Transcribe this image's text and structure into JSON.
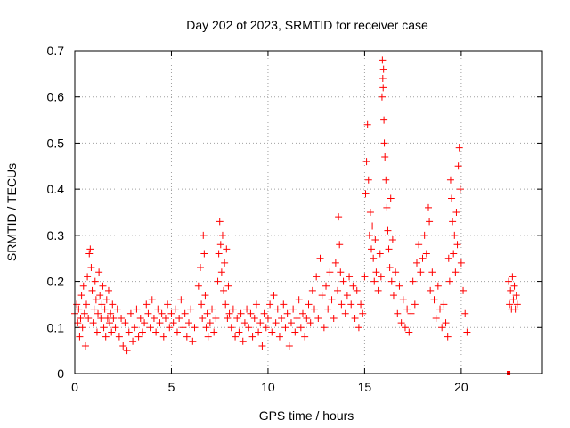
{
  "chart_data": {
    "type": "scatter",
    "title": "Day 202 of 2023, SRMTID for receiver case",
    "xlabel": "GPS time / hours",
    "ylabel": "SRMTID / TECUs",
    "xlim": [
      0,
      24.2
    ],
    "ylim": [
      0,
      0.7
    ],
    "xticks": [
      0,
      5,
      10,
      15,
      20
    ],
    "yticks": [
      0,
      0.1,
      0.2,
      0.3,
      0.4,
      0.5,
      0.6,
      0.7
    ],
    "ytick_labels": [
      "0",
      "0.1",
      "0.2",
      "0.3",
      "0.4",
      "0.5",
      "0.6",
      "0.7"
    ],
    "grid": true,
    "marker": "+",
    "color": "#ff0000",
    "series": [
      {
        "name": "SRMTID",
        "points": [
          [
            0.0,
            0.13
          ],
          [
            0.1,
            0.15
          ],
          [
            0.15,
            0.11
          ],
          [
            0.2,
            0.14
          ],
          [
            0.25,
            0.08
          ],
          [
            0.3,
            0.12
          ],
          [
            0.35,
            0.17
          ],
          [
            0.4,
            0.1
          ],
          [
            0.45,
            0.19
          ],
          [
            0.5,
            0.13
          ],
          [
            0.55,
            0.06
          ],
          [
            0.6,
            0.15
          ],
          [
            0.65,
            0.21
          ],
          [
            0.7,
            0.12
          ],
          [
            0.75,
            0.26
          ],
          [
            0.8,
            0.27
          ],
          [
            0.85,
            0.23
          ],
          [
            0.9,
            0.18
          ],
          [
            0.95,
            0.11
          ],
          [
            1.0,
            0.14
          ],
          [
            1.05,
            0.2
          ],
          [
            1.1,
            0.16
          ],
          [
            1.15,
            0.09
          ],
          [
            1.2,
            0.13
          ],
          [
            1.25,
            0.22
          ],
          [
            1.3,
            0.17
          ],
          [
            1.35,
            0.12
          ],
          [
            1.4,
            0.15
          ],
          [
            1.45,
            0.19
          ],
          [
            1.5,
            0.1
          ],
          [
            1.55,
            0.14
          ],
          [
            1.6,
            0.08
          ],
          [
            1.65,
            0.16
          ],
          [
            1.7,
            0.12
          ],
          [
            1.75,
            0.18
          ],
          [
            1.8,
            0.11
          ],
          [
            1.85,
            0.13
          ],
          [
            1.9,
            0.09
          ],
          [
            1.95,
            0.15
          ],
          [
            2.0,
            0.12
          ],
          [
            2.1,
            0.1
          ],
          [
            2.2,
            0.14
          ],
          [
            2.3,
            0.08
          ],
          [
            2.4,
            0.12
          ],
          [
            2.5,
            0.06
          ],
          [
            2.6,
            0.11
          ],
          [
            2.7,
            0.05
          ],
          [
            2.8,
            0.09
          ],
          [
            2.9,
            0.13
          ],
          [
            3.0,
            0.07
          ],
          [
            3.1,
            0.1
          ],
          [
            3.2,
            0.14
          ],
          [
            3.3,
            0.08
          ],
          [
            3.4,
            0.12
          ],
          [
            3.5,
            0.09
          ],
          [
            3.6,
            0.11
          ],
          [
            3.7,
            0.15
          ],
          [
            3.8,
            0.13
          ],
          [
            3.9,
            0.1
          ],
          [
            4.0,
            0.16
          ],
          [
            4.1,
            0.12
          ],
          [
            4.2,
            0.09
          ],
          [
            4.3,
            0.14
          ],
          [
            4.4,
            0.11
          ],
          [
            4.5,
            0.13
          ],
          [
            4.6,
            0.08
          ],
          [
            4.7,
            0.12
          ],
          [
            4.8,
            0.15
          ],
          [
            4.9,
            0.1
          ],
          [
            5.0,
            0.13
          ],
          [
            5.1,
            0.11
          ],
          [
            5.2,
            0.14
          ],
          [
            5.3,
            0.09
          ],
          [
            5.4,
            0.12
          ],
          [
            5.5,
            0.16
          ],
          [
            5.6,
            0.1
          ],
          [
            5.7,
            0.13
          ],
          [
            5.8,
            0.08
          ],
          [
            5.9,
            0.11
          ],
          [
            6.0,
            0.14
          ],
          [
            6.1,
            0.07
          ],
          [
            6.2,
            0.1
          ],
          [
            6.4,
            0.19
          ],
          [
            6.5,
            0.23
          ],
          [
            6.55,
            0.15
          ],
          [
            6.6,
            0.12
          ],
          [
            6.65,
            0.3
          ],
          [
            6.7,
            0.26
          ],
          [
            6.75,
            0.17
          ],
          [
            6.8,
            0.1
          ],
          [
            6.85,
            0.13
          ],
          [
            6.9,
            0.08
          ],
          [
            7.0,
            0.11
          ],
          [
            7.1,
            0.14
          ],
          [
            7.2,
            0.09
          ],
          [
            7.3,
            0.12
          ],
          [
            7.4,
            0.2
          ],
          [
            7.45,
            0.26
          ],
          [
            7.5,
            0.33
          ],
          [
            7.55,
            0.28
          ],
          [
            7.6,
            0.22
          ],
          [
            7.65,
            0.3
          ],
          [
            7.7,
            0.18
          ],
          [
            7.75,
            0.24
          ],
          [
            7.8,
            0.15
          ],
          [
            7.85,
            0.27
          ],
          [
            7.9,
            0.12
          ],
          [
            7.95,
            0.19
          ],
          [
            8.0,
            0.13
          ],
          [
            8.1,
            0.1
          ],
          [
            8.2,
            0.14
          ],
          [
            8.3,
            0.08
          ],
          [
            8.4,
            0.12
          ],
          [
            8.5,
            0.09
          ],
          [
            8.6,
            0.13
          ],
          [
            8.7,
            0.07
          ],
          [
            8.8,
            0.11
          ],
          [
            8.9,
            0.14
          ],
          [
            9.0,
            0.1
          ],
          [
            9.1,
            0.13
          ],
          [
            9.2,
            0.08
          ],
          [
            9.3,
            0.12
          ],
          [
            9.4,
            0.15
          ],
          [
            9.5,
            0.09
          ],
          [
            9.6,
            0.11
          ],
          [
            9.7,
            0.06
          ],
          [
            9.8,
            0.13
          ],
          [
            9.9,
            0.1
          ],
          [
            10.0,
            0.12
          ],
          [
            10.1,
            0.15
          ],
          [
            10.2,
            0.09
          ],
          [
            10.3,
            0.17
          ],
          [
            10.4,
            0.11
          ],
          [
            10.5,
            0.14
          ],
          [
            10.6,
            0.08
          ],
          [
            10.7,
            0.12
          ],
          [
            10.8,
            0.15
          ],
          [
            10.9,
            0.1
          ],
          [
            11.0,
            0.13
          ],
          [
            11.1,
            0.06
          ],
          [
            11.2,
            0.11
          ],
          [
            11.3,
            0.14
          ],
          [
            11.4,
            0.09
          ],
          [
            11.5,
            0.12
          ],
          [
            11.6,
            0.16
          ],
          [
            11.7,
            0.1
          ],
          [
            11.8,
            0.13
          ],
          [
            11.9,
            0.08
          ],
          [
            12.0,
            0.12
          ],
          [
            12.1,
            0.15
          ],
          [
            12.2,
            0.11
          ],
          [
            12.3,
            0.18
          ],
          [
            12.4,
            0.14
          ],
          [
            12.5,
            0.21
          ],
          [
            12.6,
            0.12
          ],
          [
            12.7,
            0.25
          ],
          [
            12.8,
            0.17
          ],
          [
            12.9,
            0.1
          ],
          [
            13.0,
            0.19
          ],
          [
            13.1,
            0.14
          ],
          [
            13.2,
            0.22
          ],
          [
            13.3,
            0.16
          ],
          [
            13.4,
            0.12
          ],
          [
            13.5,
            0.24
          ],
          [
            13.6,
            0.18
          ],
          [
            13.65,
            0.34
          ],
          [
            13.7,
            0.28
          ],
          [
            13.75,
            0.22
          ],
          [
            13.8,
            0.15
          ],
          [
            13.9,
            0.2
          ],
          [
            14.0,
            0.13
          ],
          [
            14.1,
            0.17
          ],
          [
            14.2,
            0.21
          ],
          [
            14.3,
            0.15
          ],
          [
            14.4,
            0.19
          ],
          [
            14.5,
            0.12
          ],
          [
            14.6,
            0.18
          ],
          [
            14.7,
            0.1
          ],
          [
            14.8,
            0.15
          ],
          [
            14.9,
            0.13
          ],
          [
            15.0,
            0.21
          ],
          [
            15.05,
            0.39
          ],
          [
            15.1,
            0.46
          ],
          [
            15.15,
            0.54
          ],
          [
            15.2,
            0.42
          ],
          [
            15.25,
            0.3
          ],
          [
            15.3,
            0.35
          ],
          [
            15.35,
            0.27
          ],
          [
            15.4,
            0.32
          ],
          [
            15.45,
            0.25
          ],
          [
            15.5,
            0.2
          ],
          [
            15.55,
            0.29
          ],
          [
            15.6,
            0.22
          ],
          [
            15.7,
            0.18
          ],
          [
            15.8,
            0.26
          ],
          [
            15.85,
            0.21
          ],
          [
            15.9,
            0.6
          ],
          [
            15.92,
            0.68
          ],
          [
            15.94,
            0.64
          ],
          [
            15.96,
            0.62
          ],
          [
            15.98,
            0.66
          ],
          [
            16.0,
            0.55
          ],
          [
            16.02,
            0.5
          ],
          [
            16.05,
            0.47
          ],
          [
            16.1,
            0.42
          ],
          [
            16.15,
            0.36
          ],
          [
            16.2,
            0.31
          ],
          [
            16.25,
            0.27
          ],
          [
            16.3,
            0.23
          ],
          [
            16.35,
            0.38
          ],
          [
            16.4,
            0.2
          ],
          [
            16.45,
            0.29
          ],
          [
            16.5,
            0.17
          ],
          [
            16.6,
            0.22
          ],
          [
            16.7,
            0.13
          ],
          [
            16.8,
            0.19
          ],
          [
            16.9,
            0.11
          ],
          [
            17.0,
            0.16
          ],
          [
            17.1,
            0.1
          ],
          [
            17.2,
            0.14
          ],
          [
            17.3,
            0.09
          ],
          [
            17.4,
            0.13
          ],
          [
            17.5,
            0.2
          ],
          [
            17.6,
            0.15
          ],
          [
            17.7,
            0.24
          ],
          [
            17.8,
            0.28
          ],
          [
            17.9,
            0.22
          ],
          [
            18.0,
            0.25
          ],
          [
            18.1,
            0.3
          ],
          [
            18.2,
            0.26
          ],
          [
            18.3,
            0.36
          ],
          [
            18.35,
            0.33
          ],
          [
            18.4,
            0.18
          ],
          [
            18.5,
            0.22
          ],
          [
            18.6,
            0.16
          ],
          [
            18.7,
            0.12
          ],
          [
            18.8,
            0.19
          ],
          [
            18.9,
            0.14
          ],
          [
            19.0,
            0.1
          ],
          [
            19.1,
            0.15
          ],
          [
            19.2,
            0.11
          ],
          [
            19.3,
            0.08
          ],
          [
            19.35,
            0.25
          ],
          [
            19.4,
            0.2
          ],
          [
            19.45,
            0.42
          ],
          [
            19.5,
            0.38
          ],
          [
            19.55,
            0.33
          ],
          [
            19.6,
            0.26
          ],
          [
            19.65,
            0.3
          ],
          [
            19.7,
            0.22
          ],
          [
            19.75,
            0.35
          ],
          [
            19.8,
            0.28
          ],
          [
            19.85,
            0.45
          ],
          [
            19.9,
            0.49
          ],
          [
            19.95,
            0.4
          ],
          [
            20.0,
            0.24
          ],
          [
            20.1,
            0.18
          ],
          [
            20.2,
            0.13
          ],
          [
            20.3,
            0.09
          ],
          [
            22.45,
            0.2
          ],
          [
            22.5,
            0.15
          ],
          [
            22.55,
            0.18
          ],
          [
            22.6,
            0.14
          ],
          [
            22.65,
            0.21
          ],
          [
            22.7,
            0.16
          ],
          [
            22.75,
            0.19
          ],
          [
            22.8,
            0.14
          ],
          [
            22.85,
            0.17
          ],
          [
            22.9,
            0.15
          ]
        ]
      }
    ],
    "annotations": [
      {
        "type": "square-marker",
        "x": 22.45,
        "y": 0.0
      }
    ]
  }
}
